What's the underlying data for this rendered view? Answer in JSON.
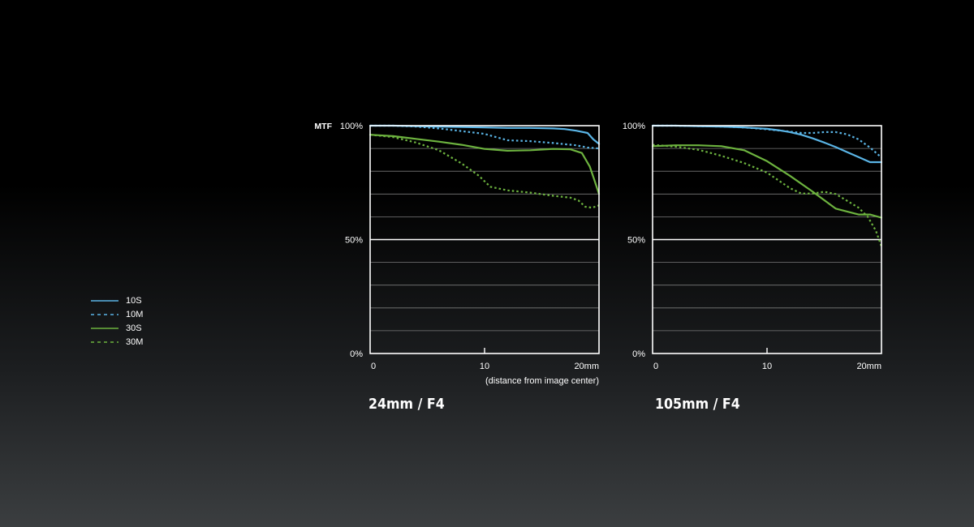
{
  "colors": {
    "s10": "#5ab4e5",
    "m10": "#5ab4e5",
    "s30": "#6db33f",
    "m30": "#6db33f",
    "background": "#000000"
  },
  "legend": [
    {
      "label": "10S",
      "color": "#5ab4e5",
      "dash": false
    },
    {
      "label": "10M",
      "color": "#5ab4e5",
      "dash": true
    },
    {
      "label": "30S",
      "color": "#6db33f",
      "dash": false
    },
    {
      "label": "30M",
      "color": "#6db33f",
      "dash": true
    }
  ],
  "chart_data": [
    {
      "type": "line",
      "title": "24mm / F4",
      "ylabel": "MTF",
      "xlabel": "(distance from image center)",
      "xlim": [
        0,
        20
      ],
      "ylim": [
        0,
        100
      ],
      "xticks": [
        "0",
        "10",
        "20mm"
      ],
      "yticks": [
        "0%",
        "50%",
        "100%"
      ],
      "series": [
        {
          "name": "10S",
          "x": [
            0,
            2,
            4,
            6,
            8,
            10,
            12,
            14,
            16,
            17,
            18,
            19,
            19.5,
            20
          ],
          "y": [
            100,
            100,
            99.8,
            99.6,
            99.4,
            99.2,
            99,
            99,
            98.8,
            98.5,
            97.8,
            96.8,
            94,
            92
          ]
        },
        {
          "name": "10M",
          "x": [
            0,
            2,
            4,
            6,
            8,
            10,
            11,
            12,
            14,
            16,
            18,
            19,
            20
          ],
          "y": [
            100,
            100,
            99.6,
            98.8,
            97.6,
            96.4,
            95,
            93.6,
            93.2,
            92.4,
            91.4,
            90.4,
            90
          ]
        },
        {
          "name": "30S",
          "x": [
            0,
            2,
            4,
            6,
            8,
            10,
            12,
            14,
            16,
            17.5,
            18.5,
            19.2,
            19.6,
            20
          ],
          "y": [
            96,
            95.4,
            94.2,
            93,
            91.6,
            89.8,
            89,
            89.2,
            89.8,
            89.6,
            88,
            82,
            76,
            70
          ]
        },
        {
          "name": "30M",
          "x": [
            0,
            2,
            4,
            6,
            8,
            9.5,
            10.5,
            12,
            14,
            16,
            17.5,
            18.2,
            18.8,
            19.4,
            20
          ],
          "y": [
            96,
            95,
            92.6,
            89.2,
            83.4,
            78,
            73.2,
            71.6,
            70.6,
            69.2,
            68.4,
            67.2,
            64.4,
            64,
            65
          ]
        }
      ]
    },
    {
      "type": "line",
      "title": "105mm / F4",
      "ylabel": "",
      "xlabel": "",
      "xlim": [
        0,
        20
      ],
      "ylim": [
        0,
        100
      ],
      "xticks": [
        "0",
        "10",
        "20mm"
      ],
      "yticks": [
        "0%",
        "50%",
        "100%"
      ],
      "series": [
        {
          "name": "10S",
          "x": [
            0,
            2,
            4,
            6,
            8,
            10,
            11,
            12,
            13,
            14,
            15,
            16,
            17,
            18,
            19,
            20
          ],
          "y": [
            100,
            100,
            99.8,
            99.6,
            99.2,
            98.6,
            98,
            97.2,
            96,
            94.4,
            92.6,
            90.6,
            88.4,
            86.2,
            84,
            84
          ]
        },
        {
          "name": "10M",
          "x": [
            0,
            2,
            4,
            6,
            8,
            10,
            12,
            13,
            14,
            15,
            16,
            17,
            18,
            19,
            20
          ],
          "y": [
            100,
            100,
            99.8,
            99.6,
            99.2,
            98.4,
            97.4,
            96.8,
            96.8,
            97.2,
            97.2,
            96.2,
            94,
            90.4,
            86
          ]
        },
        {
          "name": "30S",
          "x": [
            0,
            2,
            4,
            6,
            8,
            10,
            12,
            14,
            16,
            18,
            19,
            20
          ],
          "y": [
            91,
            91.4,
            91.4,
            91,
            89.2,
            84.4,
            78,
            71,
            63.6,
            61,
            61,
            59.6
          ]
        },
        {
          "name": "30M",
          "x": [
            0,
            2,
            4,
            6,
            8,
            10,
            12,
            13,
            14,
            15,
            16,
            17,
            18,
            18.8,
            19.5,
            20
          ],
          "y": [
            91.6,
            90.8,
            89.4,
            86.8,
            83.6,
            79.4,
            72.6,
            70.2,
            70.2,
            71,
            70,
            67,
            64,
            60,
            54,
            47
          ]
        }
      ]
    }
  ]
}
